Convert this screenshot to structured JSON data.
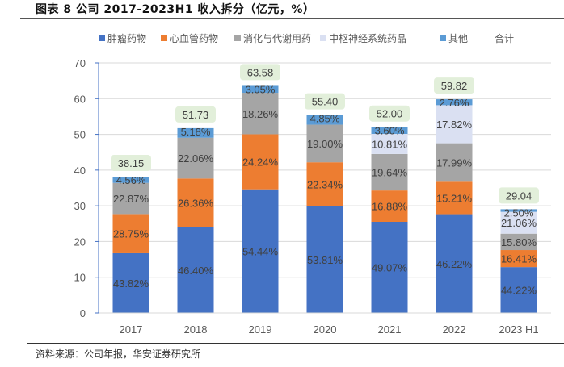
{
  "title": "图表 8 公司 2017-2023H1 收入拆分（亿元，%）",
  "source": "资料来源：公司年报，华安证券研究所",
  "colors": {
    "oncology": "#4472C4",
    "cardio": "#ED7D31",
    "digestive": "#A5A5A5",
    "cns": "#DAE0F2",
    "other": "#5B9BD5",
    "total_box": "#E2EFDA",
    "grid": "#D9D9D9",
    "label_text": "#404040",
    "axis_text": "#595959"
  },
  "chart_data": {
    "type": "bar",
    "stacked": true,
    "title": "公司 2017-2023H1 收入拆分（亿元，%）",
    "xlabel": "",
    "ylabel": "",
    "ylim": [
      0,
      70
    ],
    "yticks": [
      0,
      10,
      20,
      30,
      40,
      50,
      60,
      70
    ],
    "grid": true,
    "legend_position": "top",
    "categories": [
      "2017",
      "2018",
      "2019",
      "2020",
      "2021",
      "2022",
      "2023 H1"
    ],
    "totals": [
      38.15,
      51.73,
      63.58,
      55.4,
      52.0,
      59.82,
      29.04
    ],
    "totals_labels": [
      "38.15",
      "51.73",
      "63.58",
      "55.40",
      "52.00",
      "59.82",
      "29.04"
    ],
    "series": [
      {
        "name": "肿瘤药物",
        "key": "oncology",
        "percent": [
          43.82,
          46.4,
          54.44,
          53.81,
          49.07,
          46.22,
          44.22
        ],
        "labels": [
          "43.82%",
          "46.40%",
          "54.44%",
          "53.81%",
          "49.07%",
          "46.22%",
          "44.22%"
        ]
      },
      {
        "name": "心血管药物",
        "key": "cardio",
        "percent": [
          28.75,
          26.36,
          24.24,
          22.34,
          16.88,
          15.21,
          16.41
        ],
        "labels": [
          "28.75%",
          "26.36%",
          "24.24%",
          "22.34%",
          "16.88%",
          "15.21%",
          "16.41%"
        ]
      },
      {
        "name": "消化与代谢用药",
        "key": "digestive",
        "percent": [
          22.87,
          22.06,
          18.26,
          19.0,
          19.64,
          17.99,
          15.8
        ],
        "labels": [
          "22.87%",
          "22.06%",
          "18.26%",
          "19.00%",
          "19.64%",
          "17.99%",
          "15.80%"
        ]
      },
      {
        "name": "中枢神经系统药品",
        "key": "cns",
        "percent": [
          0,
          0,
          0,
          0,
          10.81,
          17.82,
          21.06
        ],
        "labels": [
          "",
          "",
          "",
          "",
          "10.81%",
          "17.82%",
          "21.06%"
        ]
      },
      {
        "name": "其他",
        "key": "other",
        "percent": [
          4.56,
          5.18,
          3.05,
          4.85,
          3.6,
          2.76,
          2.5
        ],
        "labels": [
          "4.56%",
          "5.18%",
          "3.05%",
          "4.85%",
          "3.60%",
          "2.76%",
          "2.50%"
        ]
      }
    ],
    "legend": [
      "肿瘤药物",
      "心血管药物",
      "消化与代谢用药",
      "中枢神经系统药品",
      "其他",
      "合计"
    ]
  }
}
